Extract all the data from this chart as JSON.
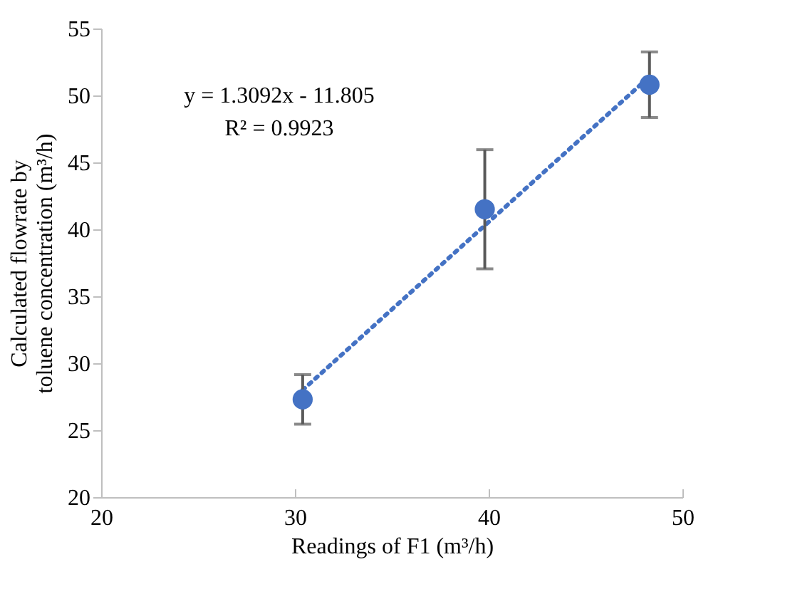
{
  "chart_data": {
    "type": "scatter",
    "xlabel": "Readings of F1 (m³/h)",
    "ylabel": "Calculated flowrate by toluene concentration (m³/h)",
    "annotations": [
      "y = 1.3092x - 11.805",
      "R² = 0.9923"
    ],
    "x": [
      30.4,
      39.8,
      48.3
    ],
    "series": [
      {
        "color": "#4472c4",
        "values": [
          27.3,
          41.5,
          50.8
        ],
        "errors": [
          1.85,
          4.45,
          2.45
        ],
        "marker": "circle"
      },
      {
        "type": "line",
        "color": "#4472c4",
        "x": [
          30.4,
          48.3
        ],
        "values": [
          28.0,
          51.4
        ],
        "line_style": "dotted",
        "marker": "none"
      }
    ],
    "xlim": [
      20,
      50
    ],
    "xticks": [
      20,
      30,
      40,
      50
    ],
    "ylim": [
      20,
      55
    ],
    "yticks": [
      20,
      25,
      30,
      35,
      40,
      45,
      50,
      55
    ],
    "grid": false
  }
}
